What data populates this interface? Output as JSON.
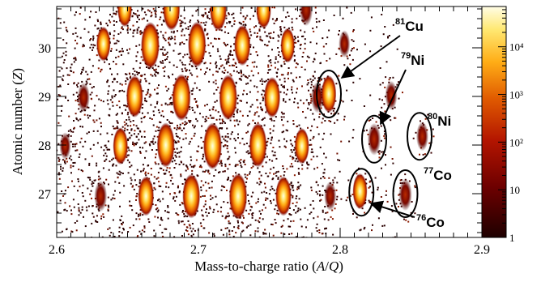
{
  "chart_data": {
    "type": "heatmap",
    "title": "",
    "xlabel": "Mass-to-charge ratio (A/Q)",
    "ylabel": "Atomic number (Z)",
    "xlim": [
      2.6,
      2.9
    ],
    "ylim": [
      26.1,
      30.85
    ],
    "x_ticks": [
      2.6,
      2.7,
      2.8,
      2.9
    ],
    "x_tick_labels": [
      "2.6",
      "2.7",
      "2.8",
      "2.9"
    ],
    "y_ticks": [
      27,
      28,
      29,
      30
    ],
    "y_tick_labels": [
      "27",
      "28",
      "29",
      "30"
    ],
    "colorbar": {
      "scale": "log",
      "range": [
        1,
        70000
      ],
      "ticks": [
        1,
        10,
        100,
        1000,
        10000
      ],
      "tick_labels": [
        "1",
        "10",
        "10²",
        "10³",
        "10⁴"
      ],
      "colors": [
        "#2a0000",
        "#6e0000",
        "#b31500",
        "#e05a00",
        "#ffad16",
        "#ffe872",
        "#fffde6"
      ]
    },
    "grid": false,
    "blobs": [
      {
        "x": 2.606,
        "z": 27.98,
        "intensity": 0.2
      },
      {
        "x": 2.619,
        "z": 28.98,
        "intensity": 0.3
      },
      {
        "x": 2.631,
        "z": 26.95,
        "intensity": 0.35
      },
      {
        "x": 2.633,
        "z": 30.08,
        "intensity": 0.5
      },
      {
        "x": 2.645,
        "z": 27.98,
        "intensity": 0.6
      },
      {
        "x": 2.648,
        "z": 30.8,
        "intensity": 0.55
      },
      {
        "x": 2.655,
        "z": 29.0,
        "intensity": 0.8
      },
      {
        "x": 2.663,
        "z": 26.95,
        "intensity": 0.7
      },
      {
        "x": 2.666,
        "z": 30.05,
        "intensity": 1.0
      },
      {
        "x": 2.677,
        "z": 28.0,
        "intensity": 0.92
      },
      {
        "x": 2.681,
        "z": 30.8,
        "intensity": 0.85
      },
      {
        "x": 2.688,
        "z": 28.98,
        "intensity": 1.0
      },
      {
        "x": 2.695,
        "z": 26.95,
        "intensity": 0.9
      },
      {
        "x": 2.699,
        "z": 30.07,
        "intensity": 0.95
      },
      {
        "x": 2.71,
        "z": 27.98,
        "intensity": 1.0
      },
      {
        "x": 2.714,
        "z": 30.78,
        "intensity": 0.8
      },
      {
        "x": 2.721,
        "z": 28.98,
        "intensity": 0.95
      },
      {
        "x": 2.728,
        "z": 26.95,
        "intensity": 0.95
      },
      {
        "x": 2.731,
        "z": 30.05,
        "intensity": 0.75
      },
      {
        "x": 2.742,
        "z": 28.0,
        "intensity": 0.9
      },
      {
        "x": 2.746,
        "z": 30.78,
        "intensity": 0.6
      },
      {
        "x": 2.752,
        "z": 28.98,
        "intensity": 0.75
      },
      {
        "x": 2.76,
        "z": 26.95,
        "intensity": 0.7
      },
      {
        "x": 2.763,
        "z": 30.05,
        "intensity": 0.5
      },
      {
        "x": 2.773,
        "z": 27.98,
        "intensity": 0.55
      },
      {
        "x": 2.776,
        "z": 30.78,
        "intensity": 0.4
      },
      {
        "x": 2.784,
        "z": 28.98,
        "intensity": 0.35
      },
      {
        "x": 2.793,
        "z": 26.95,
        "intensity": 0.28
      },
      {
        "x": 2.792,
        "z": 29.05,
        "intensity": 0.6
      },
      {
        "x": 2.803,
        "z": 30.08,
        "intensity": 0.2
      },
      {
        "x": 2.814,
        "z": 27.05,
        "intensity": 0.55
      },
      {
        "x": 2.824,
        "z": 28.12,
        "intensity": 0.4
      },
      {
        "x": 2.846,
        "z": 26.98,
        "intensity": 0.4
      },
      {
        "x": 2.858,
        "z": 28.18,
        "intensity": 0.28
      },
      {
        "x": 2.836,
        "z": 29.02,
        "intensity": 0.28
      }
    ],
    "annotations": [
      {
        "mass": "81",
        "element": "Cu",
        "circle": {
          "x": 2.792,
          "z": 29.05
        }
      },
      {
        "mass": "79",
        "element": "Ni",
        "circle": {
          "x": 2.824,
          "z": 28.12
        }
      },
      {
        "mass": "80",
        "element": "Ni",
        "circle": {
          "x": 2.856,
          "z": 28.18
        }
      },
      {
        "mass": "77",
        "element": "Co",
        "circle": {
          "x": 2.846,
          "z": 27.0
        }
      },
      {
        "mass": "76",
        "element": "Co",
        "circle": {
          "x": 2.815,
          "z": 27.03
        }
      }
    ]
  }
}
